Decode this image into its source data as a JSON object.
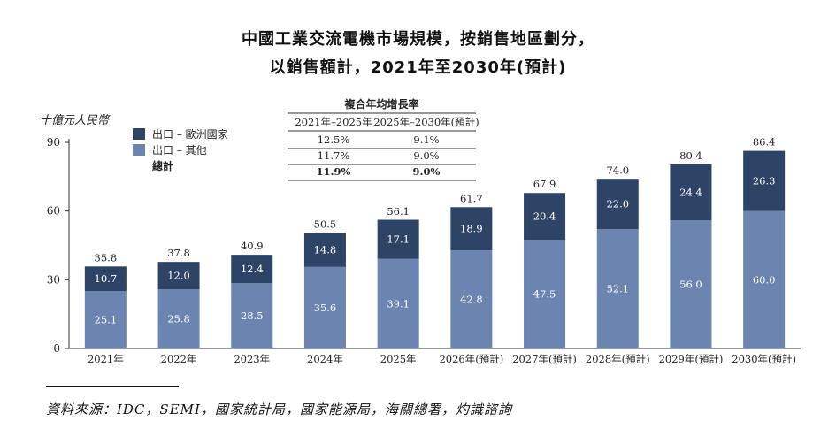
{
  "title_line1": "中國工業交流電機市場規模，按銷售地區劃分，",
  "title_line2": "以銷售額計，2021年至2030年(預計)",
  "source": "資料來源：IDC，SEMI，國家統計局，國家能源局，海關總署，灼識諮詢",
  "colors": {
    "europe": "#2e4466",
    "other": "#6b84b0"
  },
  "chart_data": {
    "type": "bar",
    "stacked": true,
    "ylabel": "十億元人民幣",
    "ylim": [
      0,
      90
    ],
    "yticks": [
      "0",
      "30",
      "60",
      "90"
    ],
    "categories": [
      "2021年",
      "2022年",
      "2023年",
      "2024年",
      "2025年",
      "2026年(預計)",
      "2027年(預計)",
      "2028年(預計)",
      "2029年(預計)",
      "2030年(預計)"
    ],
    "series": [
      {
        "name": "出口 – 其他",
        "values": [
          25.1,
          25.8,
          28.5,
          35.6,
          39.1,
          42.8,
          47.5,
          52.1,
          56.0,
          60.0
        ],
        "labels": [
          "25.1",
          "25.8",
          "28.5",
          "35.6",
          "39.1",
          "42.8",
          "47.5",
          "52.1",
          "56.0",
          "60.0"
        ]
      },
      {
        "name": "出口 – 歐洲國家",
        "values": [
          10.7,
          12.0,
          12.4,
          14.8,
          17.1,
          18.9,
          20.4,
          22.0,
          24.4,
          26.3
        ],
        "labels": [
          "10.7",
          "12.0",
          "12.4",
          "14.8",
          "17.1",
          "18.9",
          "20.4",
          "22.0",
          "24.4",
          "26.3"
        ]
      }
    ],
    "totals": [
      35.8,
      37.8,
      40.9,
      50.5,
      56.1,
      61.7,
      67.9,
      74.0,
      80.4,
      86.4
    ],
    "total_labels": [
      "35.8",
      "37.8",
      "40.9",
      "50.5",
      "56.1",
      "61.7",
      "67.9",
      "74.0",
      "80.4",
      "86.4"
    ],
    "legend": {
      "position": "top-left",
      "items": [
        {
          "label": "出口 – 歐洲國家",
          "series": 1
        },
        {
          "label": "出口 – 其他",
          "series": 0
        },
        {
          "label": "總計",
          "series": null
        }
      ]
    },
    "cagr_table": {
      "title": "複合年均增長率",
      "headers": [
        "2021年–2025年",
        "2025年–2030年(預計)"
      ],
      "rows": [
        [
          "12.5%",
          "9.1%"
        ],
        [
          "11.7%",
          "9.0%"
        ],
        [
          "11.9%",
          "9.0%"
        ]
      ]
    }
  }
}
